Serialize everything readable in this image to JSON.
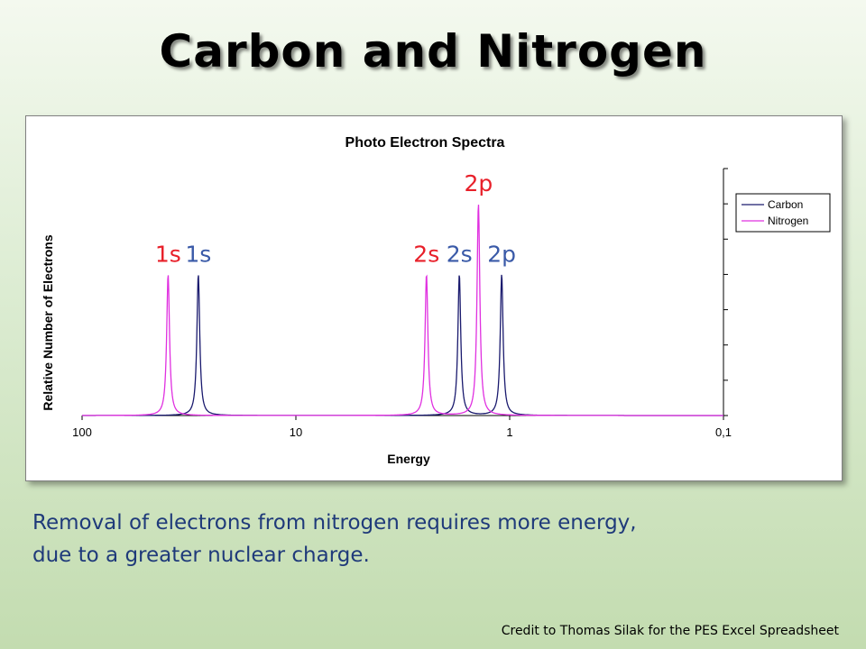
{
  "slide": {
    "title": "Carbon and Nitrogen",
    "caption_line1": "Removal of electrons from nitrogen requires more energy,",
    "caption_line2": "due to a greater nuclear charge.",
    "credit": "Credit to Thomas Silak for the PES Excel Spreadsheet"
  },
  "chart_data": {
    "type": "line",
    "title": "Photo Electron Spectra",
    "xlabel": "Energy",
    "ylabel": "Relative Number of Electrons",
    "x_scale": "log",
    "x_reversed": true,
    "xlim": [
      100,
      0.1
    ],
    "x_ticks": [
      "100",
      "10",
      "1",
      "0,1"
    ],
    "ylim": [
      0,
      7
    ],
    "y_tick_count": 7,
    "legend_position": "top-right",
    "grid": false,
    "series": [
      {
        "name": "Carbon",
        "color": "#1a1a6e",
        "peaks": [
          {
            "label": "1s",
            "energy": 28.6,
            "height": 4
          },
          {
            "label": "2s",
            "energy": 1.72,
            "height": 4
          },
          {
            "label": "2p",
            "energy": 1.09,
            "height": 4
          }
        ]
      },
      {
        "name": "Nitrogen",
        "color": "#e030e0",
        "peaks": [
          {
            "label": "1s",
            "energy": 39.6,
            "height": 4
          },
          {
            "label": "2s",
            "energy": 2.45,
            "height": 4
          },
          {
            "label": "2p",
            "energy": 1.4,
            "height": 6
          }
        ]
      }
    ],
    "peak_label_colors": {
      "Nitrogen": "#e8202a",
      "Carbon": "#3a5aa8"
    }
  }
}
